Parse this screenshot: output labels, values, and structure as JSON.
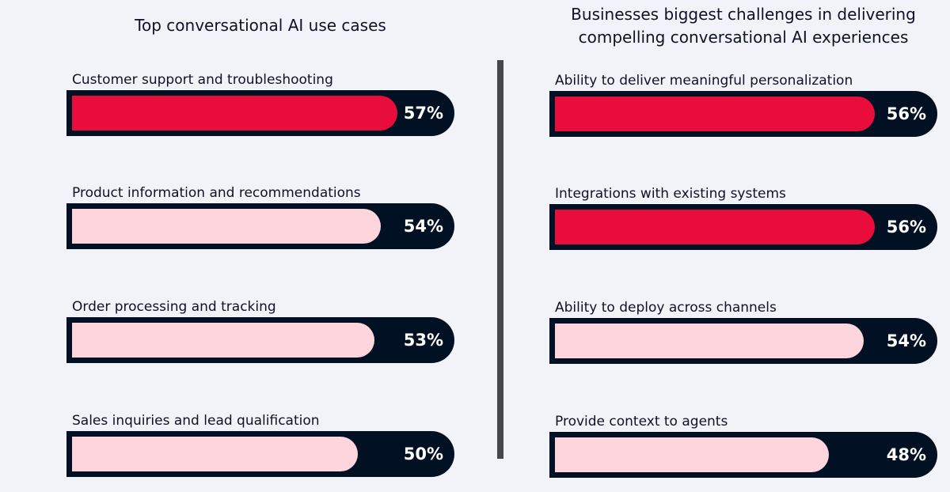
{
  "colors": {
    "background": "#f2f3f8",
    "track": "#021024",
    "highlight": "#e80d3a",
    "normal": "#fcd6dc",
    "divider": "#444649"
  },
  "chart_data": [
    {
      "type": "bar",
      "orientation": "horizontal",
      "title": "Top conversational AI use cases",
      "categories": [
        "Customer support and troubleshooting",
        "Product information and recommendations",
        "Order processing and tracking",
        "Sales inquiries and lead qualification"
      ],
      "values": [
        57,
        54,
        53,
        50
      ],
      "value_labels": [
        "57%",
        "54%",
        "53%",
        "50%"
      ],
      "highlighted": [
        true,
        false,
        false,
        false
      ],
      "xlim": [
        0,
        70
      ],
      "grid": false
    },
    {
      "type": "bar",
      "orientation": "horizontal",
      "title": "Businesses biggest challenges in delivering\ncompelling conversational AI experiences",
      "categories": [
        "Ability to deliver meaningful personalization",
        "Integrations with existing systems",
        "Ability to deploy across channels",
        "Provide context to agents"
      ],
      "values": [
        56,
        56,
        54,
        48
      ],
      "value_labels": [
        "56%",
        "56%",
        "54%",
        "48%"
      ],
      "highlighted": [
        true,
        true,
        false,
        false
      ],
      "xlim": [
        0,
        70
      ],
      "grid": false
    }
  ]
}
